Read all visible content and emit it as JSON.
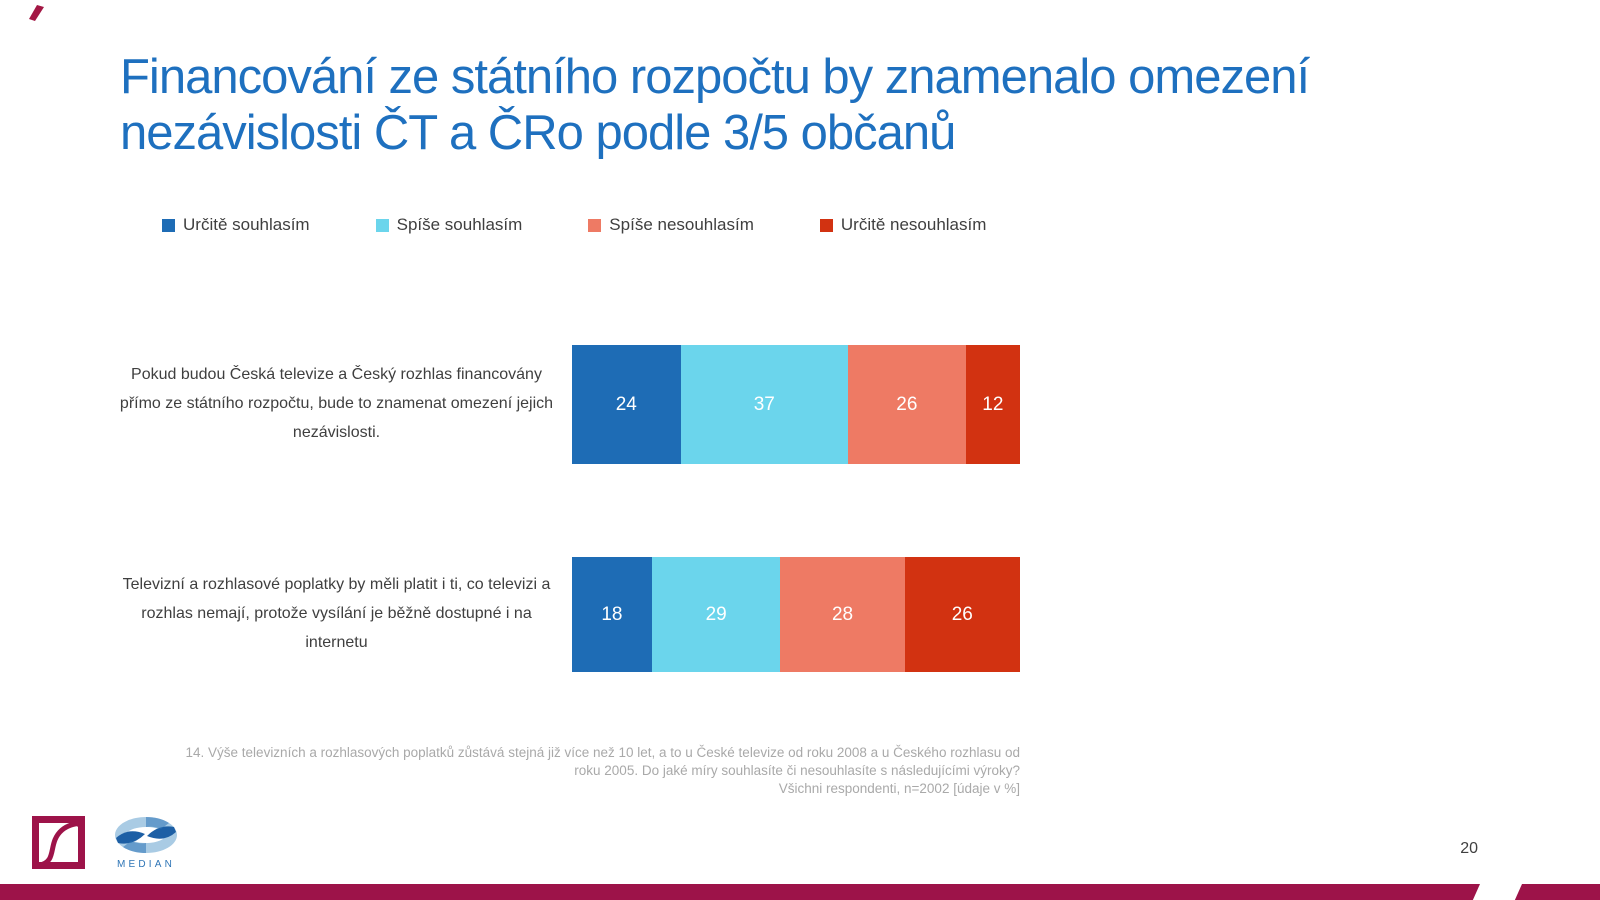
{
  "slide": {
    "title": "Financování ze státního rozpočtu by znamenalo omezení nezávislosti ČT a ČRo podle 3/5 občanů",
    "title_color": "#1E70BF",
    "page_number": "20",
    "accent_bar_color": "#9D1349"
  },
  "chart_data": {
    "type": "bar",
    "orientation": "horizontal",
    "stacked": true,
    "units": "% (údaje v %)",
    "legend_position": "top",
    "value_labels": "inside segments, white",
    "categories": [
      "Pokud budou Česká televize a Český rozhlas financovány přímo ze státního rozpočtu, bude to znamenat omezení jejich nezávislosti.",
      "Televizní a rozhlasové poplatky by měli platit i ti, co televizi a rozhlas nemají, protože vysílání je běžně dostupné i na internetu"
    ],
    "series": [
      {
        "name": "Určitě souhlasím",
        "color": "#1E6CB5",
        "values": [
          24,
          18
        ]
      },
      {
        "name": "Spíše souhlasím",
        "color": "#6BD5EC",
        "values": [
          37,
          29
        ]
      },
      {
        "name": "Spíše nesouhlasím",
        "color": "#EE7A64",
        "values": [
          26,
          28
        ]
      },
      {
        "name": "Určitě nesouhlasím",
        "color": "#D23211",
        "values": [
          12,
          26
        ]
      }
    ]
  },
  "footnote": {
    "lines": [
      "14. Výše televizních a rozhlasových poplatků zůstává stejná již více než 10 let, a to u České televize od roku 2008 a u Českého rozhlasu od",
      "roku 2005. Do jaké míry souhlasíte či nesouhlasíte s následujícími výroky?",
      "Všichni respondenti, n=2002  [údaje v %]"
    ]
  },
  "footer": {
    "median_wordmark": "MEDIAN",
    "icons": {
      "s_curve_logo": "s-curve-square-logo",
      "ribbon_logo": "median-ribbon-logo",
      "corner_mark": "corner-accent-mark"
    }
  }
}
